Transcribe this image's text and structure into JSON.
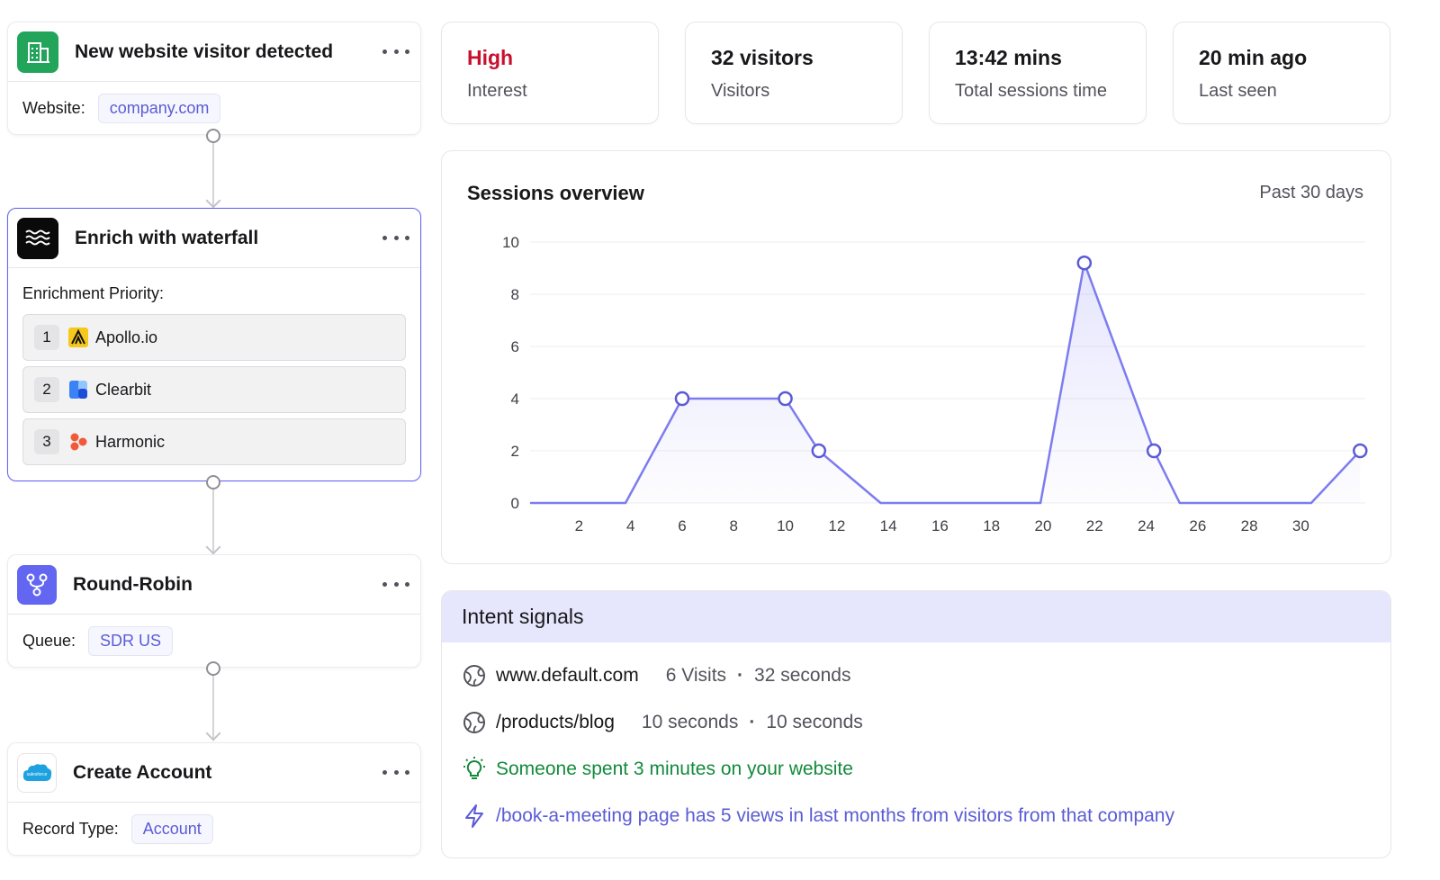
{
  "workflow": {
    "trigger": {
      "title": "New website visitor detected",
      "field_label": "Website:",
      "field_value": "company.com",
      "icon": "building-icon"
    },
    "enrich": {
      "title": "Enrich with waterfall",
      "priority_label": "Enrichment Priority:",
      "icon": "waves-icon",
      "providers": [
        {
          "rank": "1",
          "name": "Apollo.io",
          "icon": "apollo-logo-icon"
        },
        {
          "rank": "2",
          "name": "Clearbit",
          "icon": "clearbit-logo-icon"
        },
        {
          "rank": "3",
          "name": "Harmonic",
          "icon": "harmonic-logo-icon"
        }
      ]
    },
    "round_robin": {
      "title": "Round-Robin",
      "field_label": "Queue:",
      "field_value": "SDR US",
      "icon": "branch-icon"
    },
    "create_account": {
      "title": "Create Account",
      "field_label": "Record Type:",
      "field_value": "Account",
      "icon": "salesforce-logo-icon",
      "logo_text": "salesforce"
    }
  },
  "stats": [
    {
      "value": "High",
      "label": "Interest"
    },
    {
      "value": "32 visitors",
      "label": "Visitors"
    },
    {
      "value": "13:42 mins",
      "label": "Total sessions time"
    },
    {
      "value": "20 min ago",
      "label": "Last seen"
    }
  ],
  "sessions": {
    "title": "Sessions overview",
    "range": "Past 30 days"
  },
  "chart_data": {
    "type": "line",
    "title": "Sessions overview",
    "xlabel": "",
    "ylabel": "",
    "xlim": [
      0.1,
      32.5
    ],
    "ylim": [
      0,
      10
    ],
    "x_ticks": [
      2,
      4,
      6,
      8,
      10,
      12,
      14,
      16,
      18,
      20,
      22,
      24,
      26,
      28,
      30
    ],
    "y_ticks": [
      0,
      2,
      4,
      6,
      8,
      10
    ],
    "grid": true,
    "x": [
      0.1,
      3.8,
      6,
      10,
      11.3,
      13.7,
      19.9,
      21.6,
      24.3,
      25.3,
      30.4,
      32.3
    ],
    "values": [
      0,
      0,
      4,
      4,
      2,
      0,
      0,
      9.2,
      2,
      0,
      0,
      2
    ],
    "markers_at": [
      6,
      10,
      11.3,
      21.6,
      24.3,
      32.3
    ],
    "color": "#7c7cf0"
  },
  "intent": {
    "title": "Intent signals",
    "signals": [
      {
        "text": "www.default.com",
        "meta1": "6 Visits",
        "sep": "·",
        "meta2": "32 seconds",
        "icon": "globe-icon"
      },
      {
        "text": "/products/blog",
        "meta1": "10 seconds",
        "sep": "·",
        "meta2": "10 seconds",
        "icon": "globe-icon"
      },
      {
        "text": "Someone spent 3 minutes on your website",
        "icon": "lightbulb-icon",
        "color": "#128a3c"
      },
      {
        "text": "/book-a-meeting page has 5 views in last months from visitors from that company",
        "icon": "lightning-icon",
        "color": "#5b5bd6"
      }
    ]
  }
}
